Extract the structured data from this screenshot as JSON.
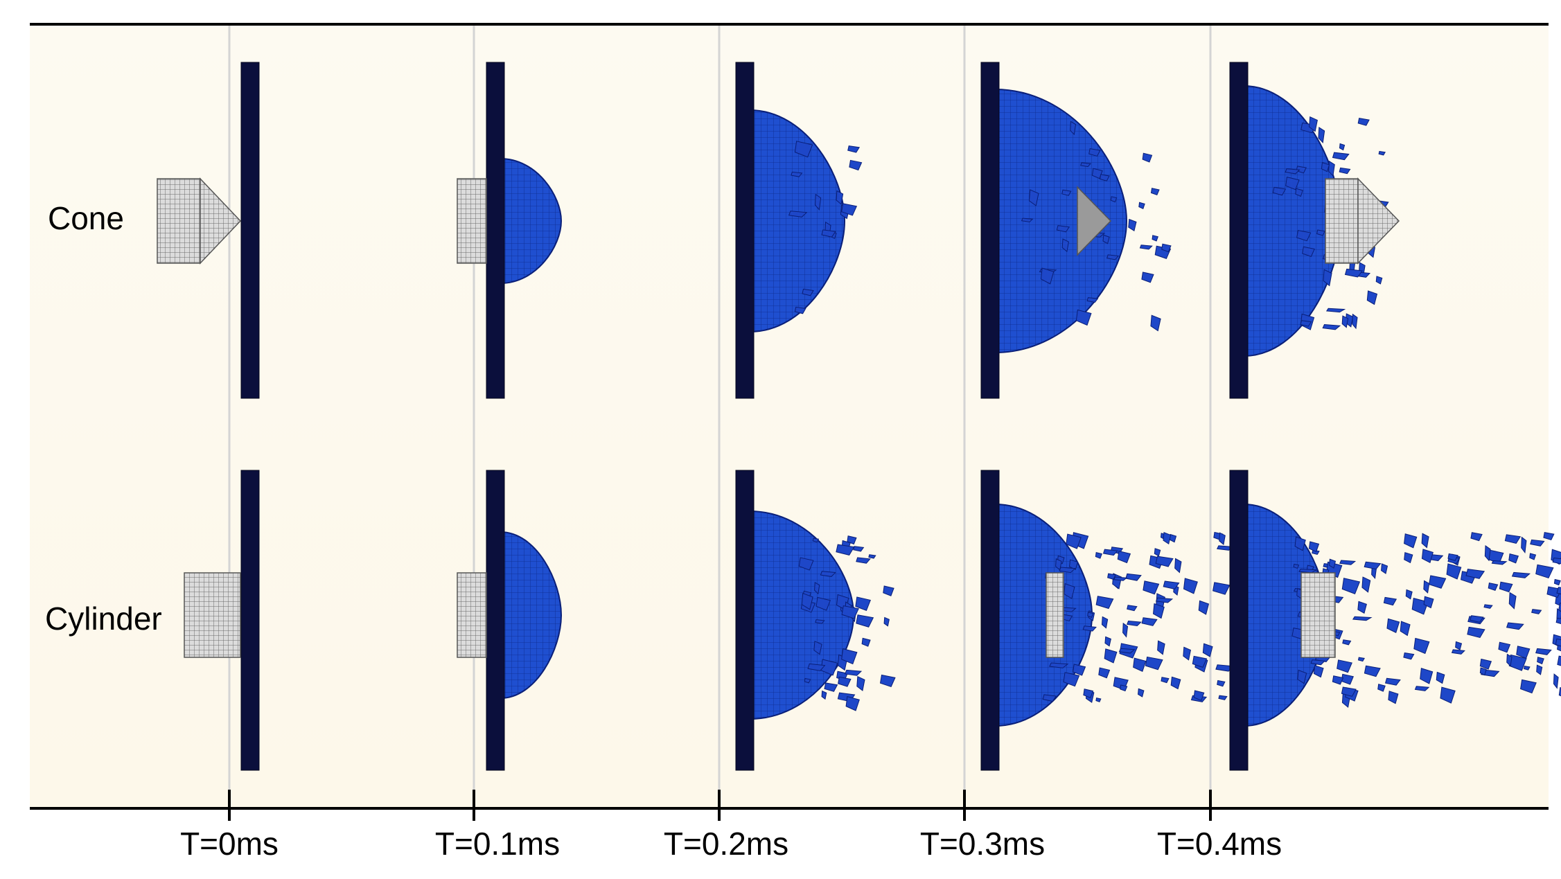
{
  "row_labels": [
    "Cone",
    "Cylinder"
  ],
  "time_labels": [
    "T=0ms",
    "T=0.1ms",
    "T=0.2ms",
    "T=0.3ms",
    "T=0.4ms"
  ]
}
